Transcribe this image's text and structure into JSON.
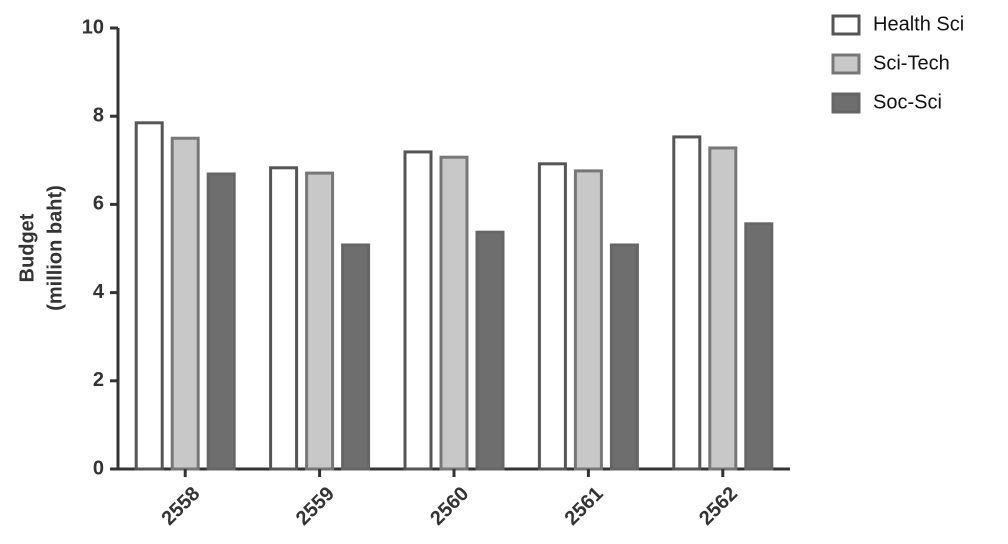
{
  "chart_data": {
    "type": "bar",
    "ylabel": [
      "Budget",
      "(million baht)"
    ],
    "categories": [
      "2558",
      "2559",
      "2560",
      "2561",
      "2562"
    ],
    "series": [
      {
        "name": "Health Sci",
        "color": "#ffffff",
        "values": [
          7.85,
          6.83,
          7.19,
          6.92,
          7.53
        ]
      },
      {
        "name": "Sci-Tech",
        "color": "#c8c8c8",
        "values": [
          7.5,
          6.71,
          7.07,
          6.76,
          7.28
        ]
      },
      {
        "name": "Soc-Sci",
        "color": "#6e6e6e",
        "values": [
          6.69,
          5.08,
          5.37,
          5.08,
          5.56
        ]
      }
    ],
    "ylim": [
      0,
      10
    ],
    "yticks": [
      0,
      2,
      4,
      6,
      8,
      10
    ]
  }
}
